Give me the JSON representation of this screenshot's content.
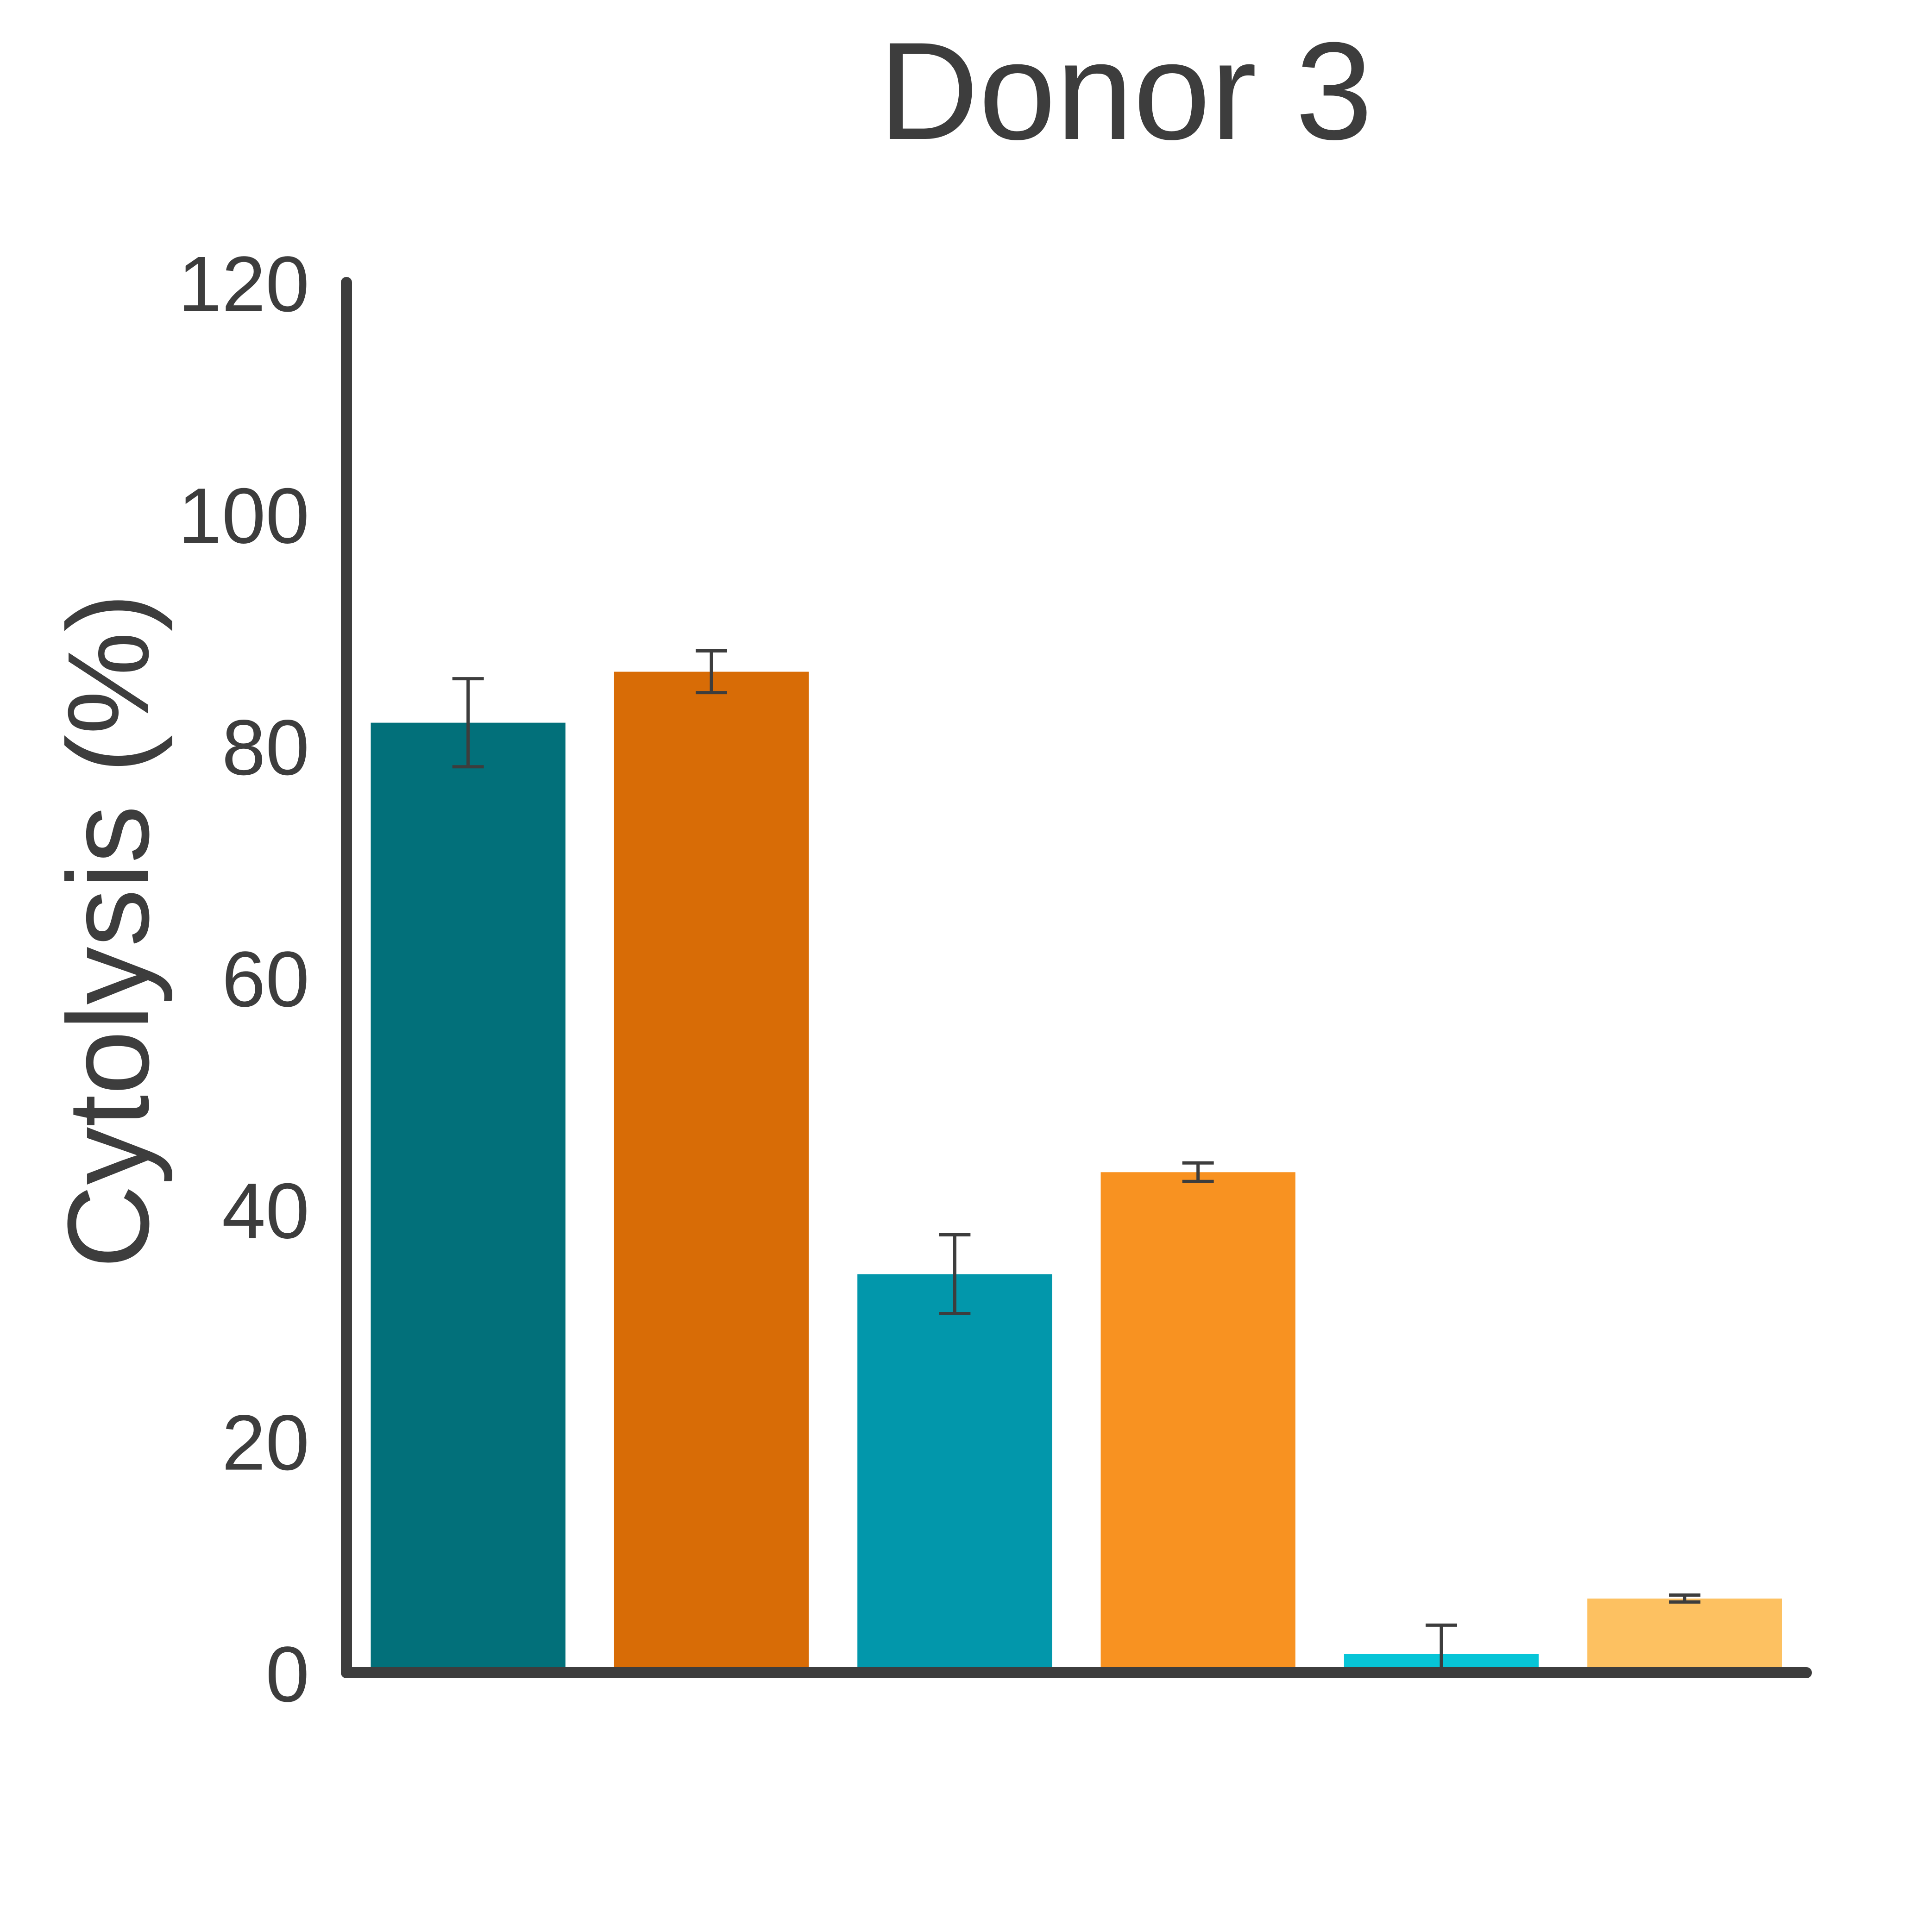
{
  "chart_data": {
    "type": "bar",
    "title": "Donor 3",
    "xlabel": "",
    "ylabel": "Cytolysis (%)",
    "ylim": [
      0,
      120
    ],
    "yticks": [
      0,
      20,
      40,
      60,
      80,
      100,
      120
    ],
    "grid": false,
    "legend": "none",
    "bars": [
      {
        "value": 82,
        "error": 3.8,
        "color": "#02707a"
      },
      {
        "value": 86.4,
        "error": 1.8,
        "color": "#d86c06"
      },
      {
        "value": 34.4,
        "error": 3.4,
        "color": "#0297ab"
      },
      {
        "value": 43.2,
        "error": 0.8,
        "color": "#f89221"
      },
      {
        "value": 1.6,
        "error": 2.5,
        "color": "#07c5d7"
      },
      {
        "value": 6.4,
        "error": 0.3,
        "color": "#fdc161"
      }
    ]
  }
}
